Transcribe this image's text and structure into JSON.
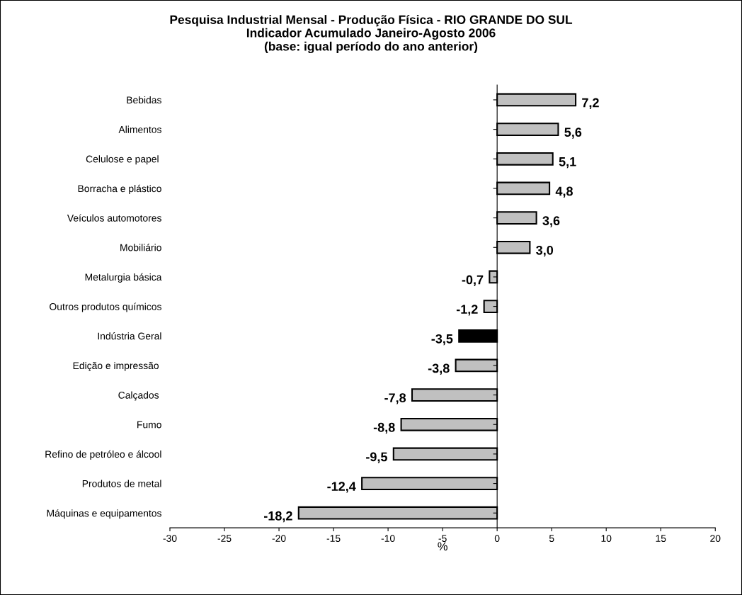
{
  "chart_data": {
    "type": "bar",
    "orientation": "horizontal",
    "title": "Pesquisa Industrial Mensal - Produção Física - RIO GRANDE DO SUL\nIndicador Acumulado Janeiro-Agosto 2006\n(base: igual período do ano anterior)",
    "xlabel": "%",
    "categories": [
      "Bebidas",
      "Alimentos",
      "Celulose e papel ",
      "Borracha e plástico",
      "Veículos automotores",
      "Mobiliário",
      "Metalurgia básica",
      "Outros produtos químicos",
      "Indústria Geral",
      "Edição e impressão ",
      "Calçados ",
      "Fumo",
      "Refino de petróleo e álcool",
      "Produtos de metal",
      "Máquinas e equipamentos"
    ],
    "values": [
      7.2,
      5.6,
      5.1,
      4.8,
      3.6,
      3.0,
      -0.7,
      -1.2,
      -3.5,
      -3.8,
      -7.8,
      -8.8,
      -9.5,
      -12.4,
      -18.2
    ],
    "value_labels": [
      "7,2",
      "5,6",
      "5,1",
      "4,8",
      "3,6",
      "3,0",
      "-0,7",
      "-1,2",
      "-3,5",
      "-3,8",
      "-7,8",
      "-8,8",
      "-9,5",
      "-12,4",
      "-18,2"
    ],
    "colors": [
      "#c0c0c0",
      "#c0c0c0",
      "#c0c0c0",
      "#c0c0c0",
      "#c0c0c0",
      "#c0c0c0",
      "#c0c0c0",
      "#c0c0c0",
      "#000000",
      "#c0c0c0",
      "#c0c0c0",
      "#c0c0c0",
      "#c0c0c0",
      "#c0c0c0",
      "#c0c0c0"
    ],
    "xlim": [
      -30,
      20
    ],
    "xticks": [
      -30,
      -25,
      -20,
      -15,
      -10,
      -5,
      0,
      5,
      10,
      15,
      20
    ],
    "legend": false
  }
}
